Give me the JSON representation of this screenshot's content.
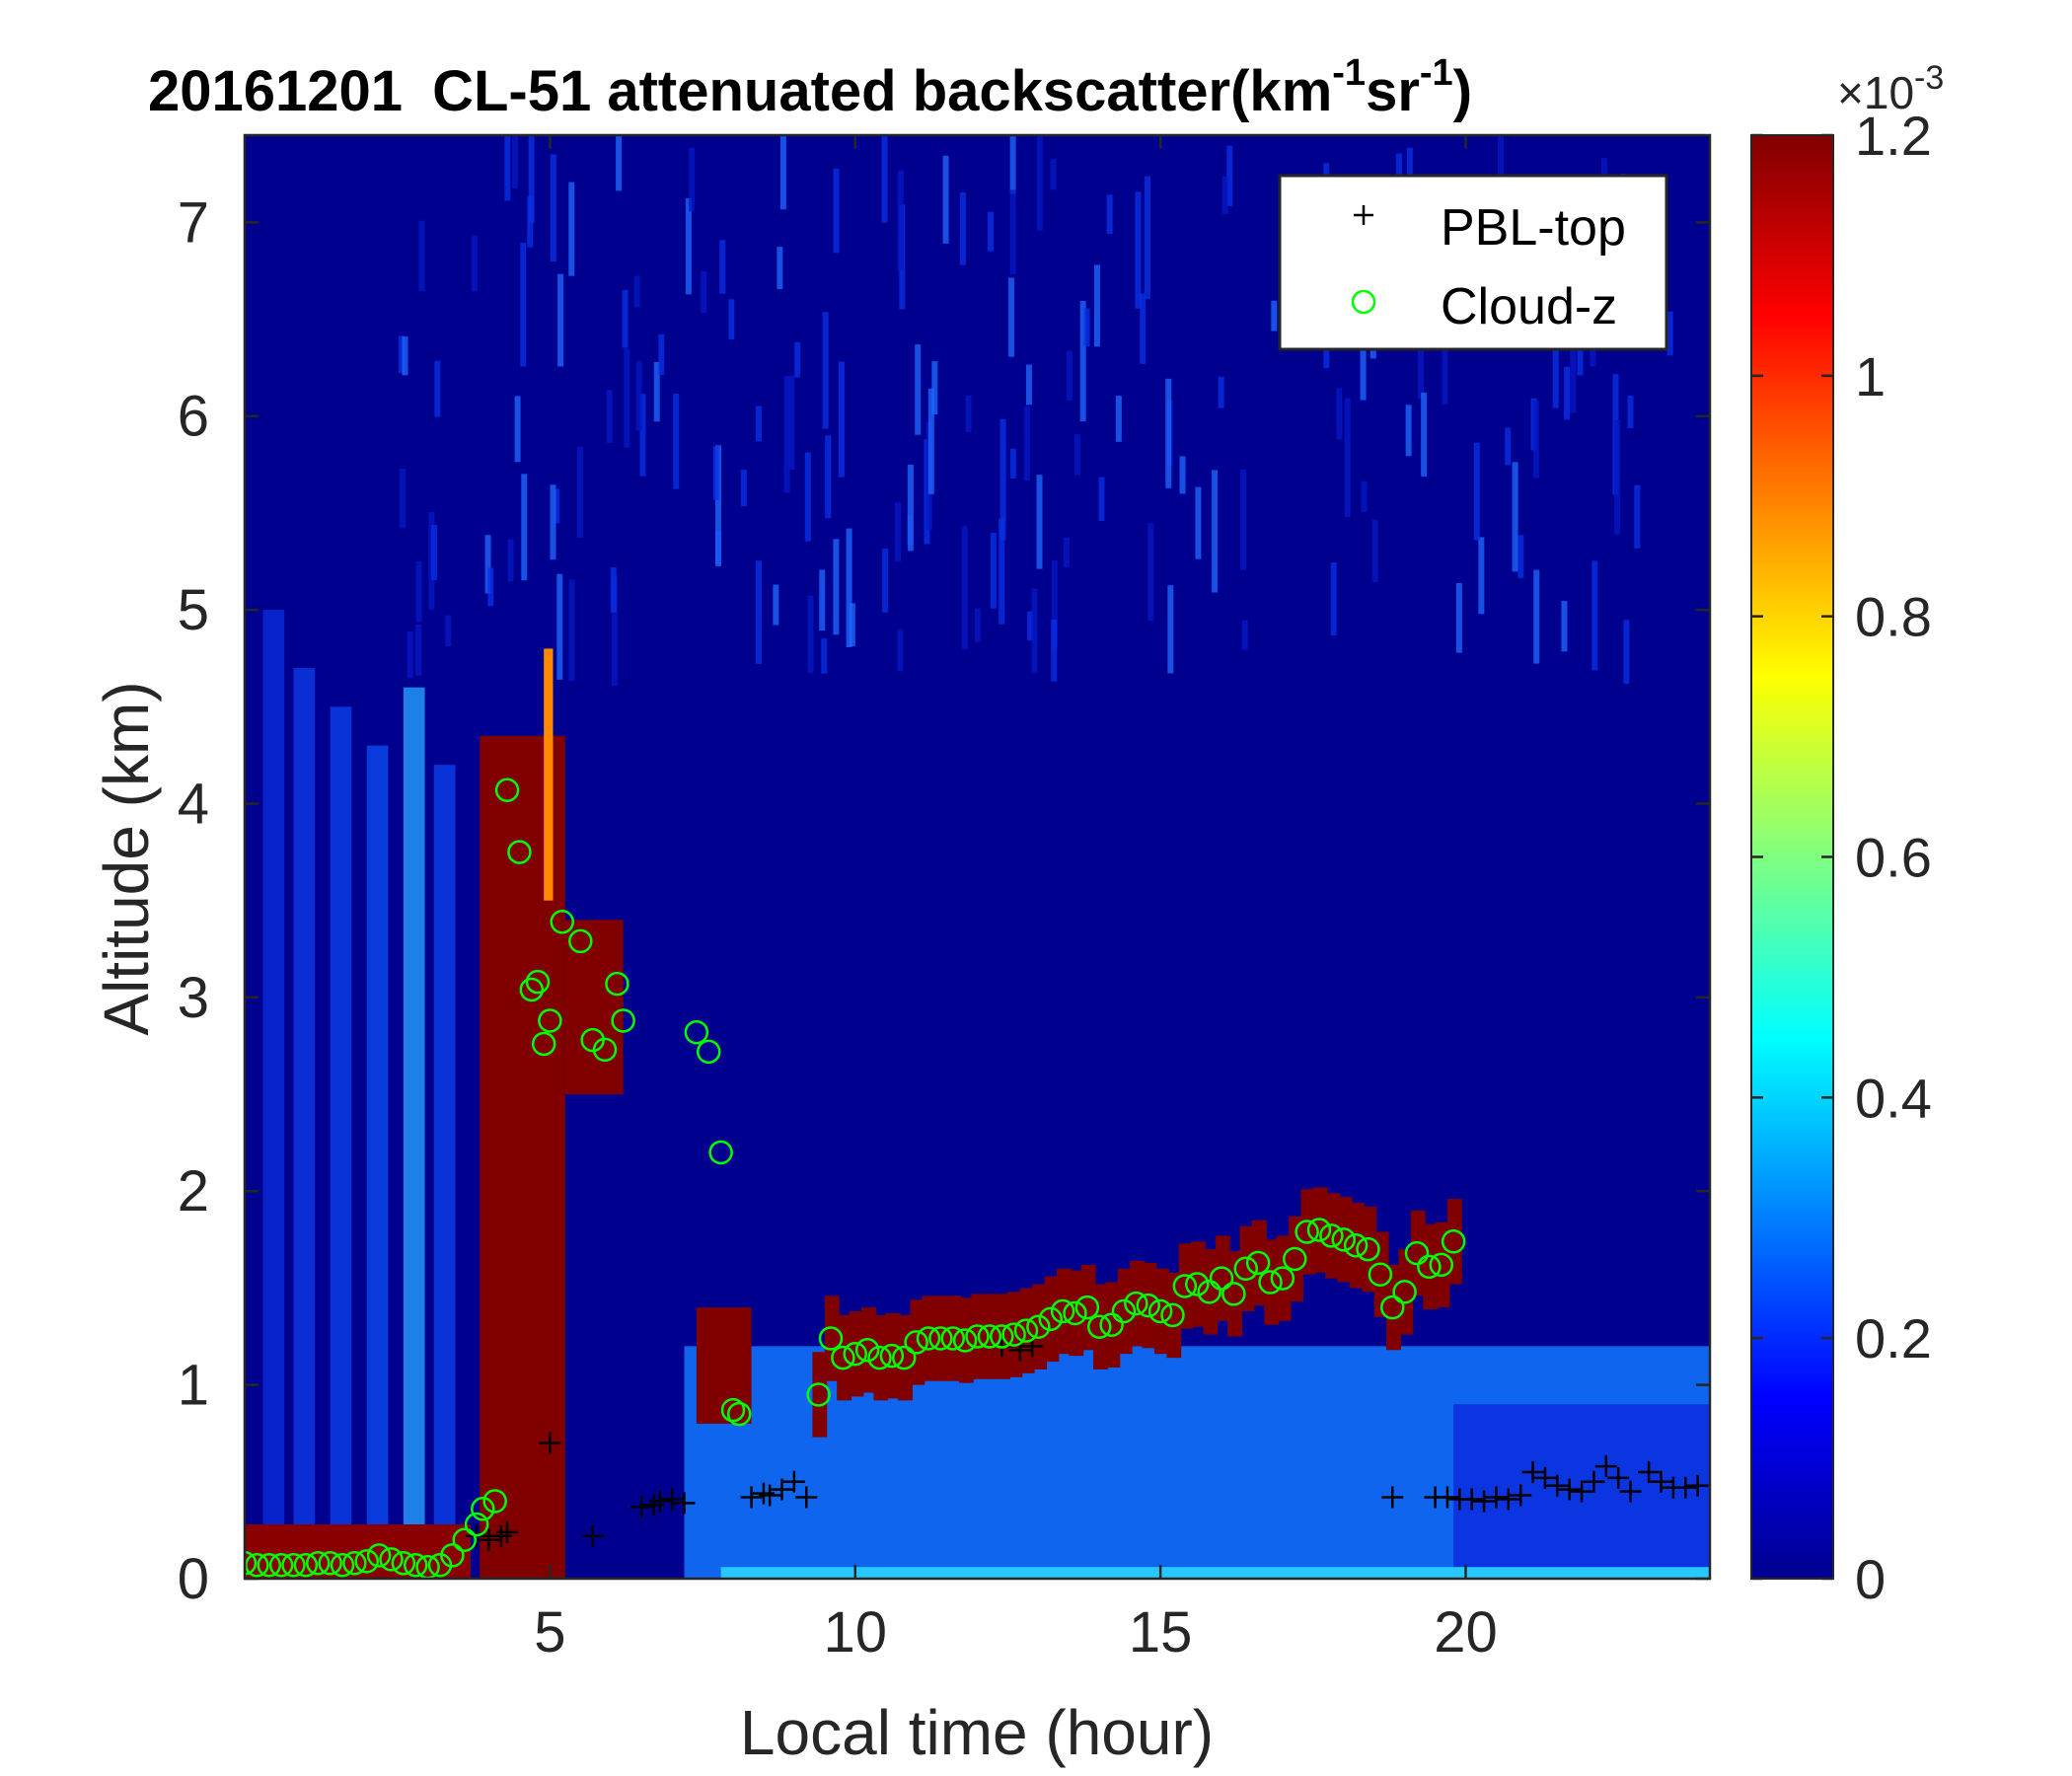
{
  "chart_data": {
    "type": "heatmap",
    "title": {
      "date": "20161201",
      "main": "CL-51 attenuated backscatter(km",
      "sup1": "-1",
      "mid": "sr",
      "sup2": "-1",
      "end": ")"
    },
    "xlabel": "Local time (hour)",
    "ylabel": "Altitude (km)",
    "xlim": [
      0,
      24
    ],
    "ylim": [
      0,
      7.45
    ],
    "xticks": [
      5,
      10,
      15,
      20
    ],
    "yticks": [
      0,
      1,
      2,
      3,
      4,
      5,
      6,
      7
    ],
    "colorbar": {
      "colormap": "jet",
      "clim": [
        0,
        0.0012
      ],
      "ticks": [
        0,
        0.2,
        0.4,
        0.6,
        0.8,
        1,
        1.2
      ],
      "tick_labels": [
        "0",
        "0.2",
        "0.4",
        "0.6",
        "0.8",
        "1",
        "1.2"
      ],
      "exponent_label": "×10",
      "exponent_sup": "-3"
    },
    "legend": {
      "location": "top-right",
      "entries": [
        {
          "name": "PBL-top",
          "marker": "+",
          "color": "#000000"
        },
        {
          "name": "Cloud-z",
          "marker": "o",
          "color": "#00ff00"
        }
      ]
    },
    "series": [
      {
        "name": "PBL-top",
        "x": [
          3.8,
          4.0,
          4.2,
          4.3,
          5.0,
          5.7,
          6.5,
          6.7,
          6.8,
          7.0,
          7.2,
          8.3,
          8.5,
          8.6,
          8.8,
          9.0,
          9.2,
          12.4,
          12.7,
          12.9,
          18.8,
          19.5,
          19.7,
          19.9,
          20.1,
          20.3,
          20.5,
          20.7,
          20.9,
          21.1,
          21.3,
          21.5,
          21.7,
          21.9,
          22.1,
          22.3,
          22.5,
          22.7,
          23.0,
          23.2,
          23.4,
          23.6,
          23.8
        ],
        "y": [
          0.22,
          0.2,
          0.22,
          0.24,
          0.7,
          0.22,
          0.37,
          0.38,
          0.4,
          0.41,
          0.39,
          0.42,
          0.44,
          0.43,
          0.46,
          0.5,
          0.42,
          1.2,
          1.18,
          1.2,
          0.42,
          0.42,
          0.42,
          0.41,
          0.41,
          0.4,
          0.42,
          0.41,
          0.43,
          0.55,
          0.52,
          0.48,
          0.46,
          0.45,
          0.5,
          0.58,
          0.52,
          0.45,
          0.55,
          0.5,
          0.47,
          0.47,
          0.48
        ]
      },
      {
        "name": "Cloud-z",
        "x": [
          0.0,
          0.2,
          0.4,
          0.6,
          0.8,
          1.0,
          1.2,
          1.4,
          1.6,
          1.8,
          2.0,
          2.2,
          2.4,
          2.6,
          2.8,
          3.0,
          3.2,
          3.4,
          3.6,
          3.8,
          3.9,
          4.1,
          4.3,
          4.5,
          4.7,
          4.8,
          4.9,
          5.0,
          5.2,
          5.5,
          5.7,
          5.9,
          6.1,
          6.2,
          7.4,
          7.6,
          7.8,
          8.0,
          8.1,
          9.4,
          9.6,
          9.8,
          10.0,
          10.2,
          10.4,
          10.6,
          10.8,
          11.0,
          11.2,
          11.4,
          11.6,
          11.8,
          12.0,
          12.2,
          12.4,
          12.6,
          12.8,
          13.0,
          13.2,
          13.4,
          13.6,
          13.8,
          14.0,
          14.2,
          14.4,
          14.6,
          14.8,
          15.0,
          15.2,
          15.4,
          15.6,
          15.8,
          16.0,
          16.2,
          16.4,
          16.6,
          16.8,
          17.0,
          17.2,
          17.4,
          17.6,
          17.8,
          18.0,
          18.2,
          18.4,
          18.6,
          18.8,
          19.0,
          19.2,
          19.4,
          19.6,
          19.8
        ],
        "y": [
          0.08,
          0.07,
          0.07,
          0.07,
          0.07,
          0.07,
          0.08,
          0.08,
          0.07,
          0.08,
          0.09,
          0.12,
          0.1,
          0.08,
          0.07,
          0.06,
          0.07,
          0.12,
          0.2,
          0.28,
          0.36,
          0.4,
          4.07,
          3.75,
          3.04,
          3.08,
          2.76,
          2.88,
          3.39,
          3.29,
          2.78,
          2.73,
          3.07,
          2.88,
          2.82,
          2.72,
          2.2,
          0.87,
          0.85,
          0.95,
          1.24,
          1.14,
          1.16,
          1.18,
          1.14,
          1.15,
          1.14,
          1.22,
          1.24,
          1.24,
          1.24,
          1.23,
          1.25,
          1.25,
          1.25,
          1.26,
          1.28,
          1.3,
          1.34,
          1.38,
          1.37,
          1.4,
          1.3,
          1.31,
          1.38,
          1.42,
          1.41,
          1.38,
          1.36,
          1.51,
          1.52,
          1.48,
          1.55,
          1.47,
          1.6,
          1.63,
          1.53,
          1.55,
          1.65,
          1.79,
          1.8,
          1.77,
          1.75,
          1.72,
          1.7,
          1.57,
          1.4,
          1.48,
          1.68,
          1.61,
          1.62,
          1.74
        ]
      }
    ]
  }
}
